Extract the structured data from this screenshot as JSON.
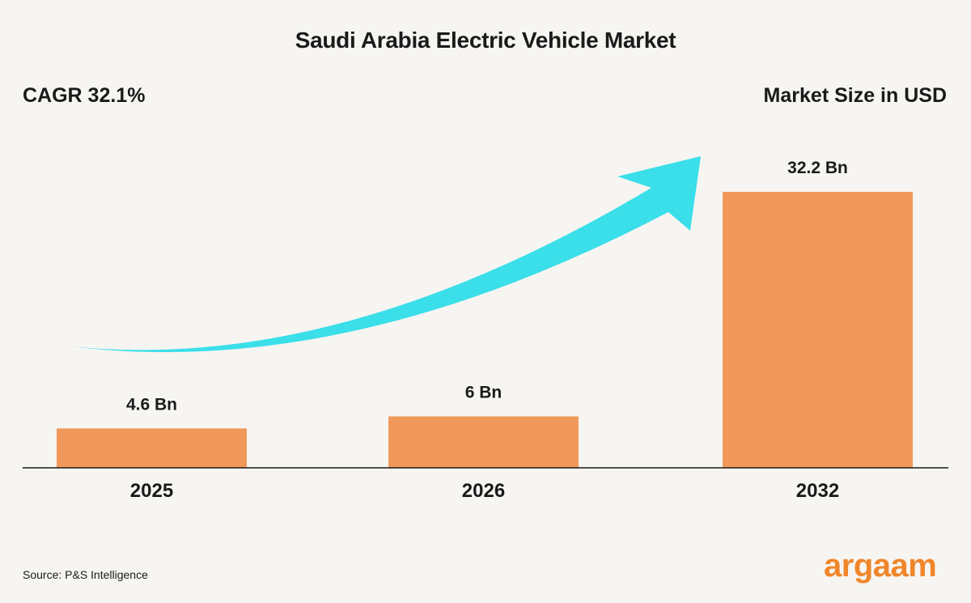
{
  "chart_data": {
    "type": "bar",
    "title": "Saudi Arabia Electric Vehicle Market",
    "annotation_left": "CAGR 32.1%",
    "ylabel": "Market Size in USD",
    "categories": [
      "2025",
      "2026",
      "2032"
    ],
    "values": [
      4.6,
      6,
      32.2
    ],
    "data_labels": [
      "4.6 Bn",
      "6 Bn",
      "32.2 Bn"
    ],
    "ylim": [
      0,
      32.2
    ],
    "grid": false,
    "bar_color": "#f0995a",
    "arrow_color": "#3adfe9",
    "source": "Source: P&S Intelligence"
  },
  "logo": "argaam"
}
